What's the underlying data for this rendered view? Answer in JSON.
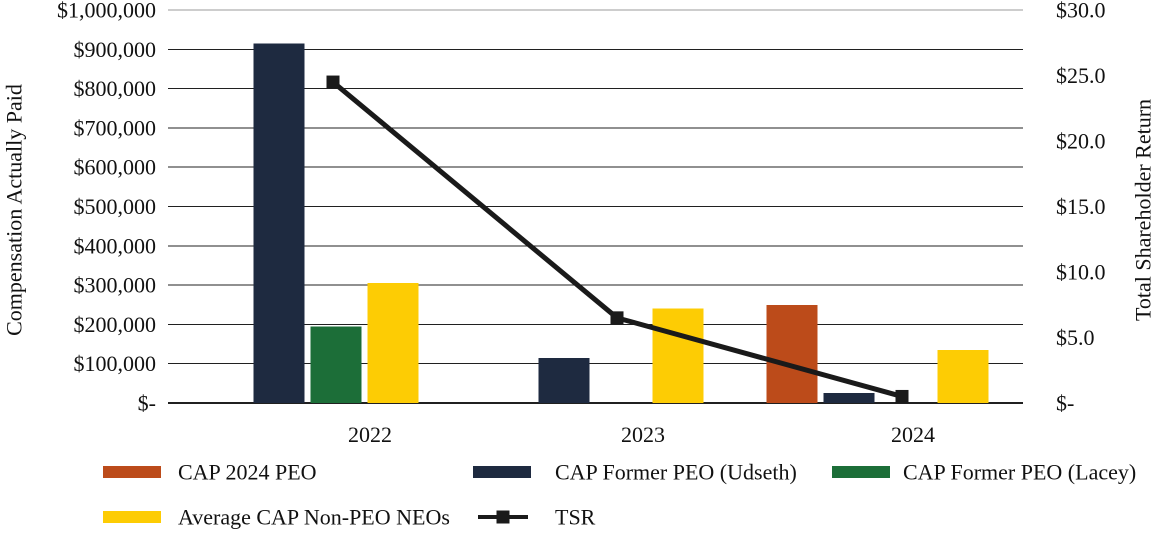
{
  "chart_data": {
    "type": "bar",
    "subtype": "grouped-bars-with-line-overlay",
    "categories": [
      "2022",
      "2023",
      "2024"
    ],
    "series": [
      {
        "name": "CAP 2024 PEO",
        "kind": "bar",
        "color": "#bc4b1a",
        "axis": "left",
        "values": [
          0,
          0,
          250000
        ]
      },
      {
        "name": "CAP Former PEO (Udseth)",
        "kind": "bar",
        "color": "#1e2a40",
        "axis": "left",
        "values": [
          915000,
          115000,
          25000
        ]
      },
      {
        "name": "CAP Former PEO (Lacey)",
        "kind": "bar",
        "color": "#1c6e38",
        "axis": "left",
        "values": [
          195000,
          0,
          0
        ]
      },
      {
        "name": "Average CAP Non-PEO NEOs",
        "kind": "bar",
        "color": "#fdcc04",
        "axis": "left",
        "values": [
          305000,
          240000,
          135000
        ]
      },
      {
        "name": "TSR",
        "kind": "line",
        "color": "#1a1a1a",
        "axis": "right",
        "marker": "square",
        "values": [
          24.5,
          6.5,
          0.5
        ]
      }
    ],
    "left_axis": {
      "title": "Compensation Actually Paid",
      "min": 0,
      "max": 1000000,
      "step": 100000,
      "tick_labels_top_to_bottom": [
        "$1,000,000",
        "$900,000",
        "$800,000",
        "$700,000",
        "$600,000",
        "$500,000",
        "$400,000",
        "$300,000",
        "$200,000",
        "$100,000",
        "$-"
      ]
    },
    "right_axis": {
      "title": "Total Shareholder Return",
      "min": 0,
      "max": 30,
      "step": 5,
      "tick_labels_top_to_bottom": [
        "$30.0",
        "$25.0",
        "$20.0",
        "$15.0",
        "$10.0",
        "$5.0",
        "$-"
      ]
    },
    "grid": true,
    "legend_position": "bottom",
    "line_color": "#1a1a1a",
    "text_color": "#111111"
  }
}
